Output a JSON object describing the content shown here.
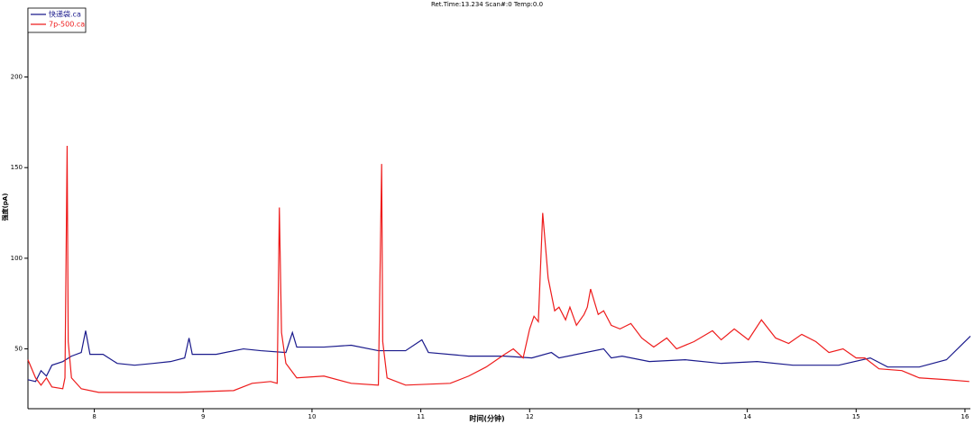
{
  "chart_data": {
    "type": "line",
    "title": "Ret.Time:13.234  Scan#:0 Temp:0.0",
    "x_label": "时间(分钟)",
    "y_label": "强度(pA)",
    "xlim": [
      7.39,
      16.05
    ],
    "ylim": [
      17,
      238
    ],
    "xticks": [
      8,
      9,
      10,
      11,
      12,
      13,
      14,
      15,
      16
    ],
    "yticks": [
      50,
      100,
      150,
      200
    ],
    "legend": "upper left",
    "series": [
      {
        "name": "快递袋.ca",
        "color": "#1a1a8c",
        "x": [
          7.39,
          7.46,
          7.51,
          7.56,
          7.61,
          7.71,
          7.79,
          7.88,
          7.92,
          7.96,
          8.08,
          8.21,
          8.37,
          8.54,
          8.7,
          8.83,
          8.87,
          8.9,
          9.12,
          9.37,
          9.53,
          9.76,
          9.82,
          9.86,
          10.11,
          10.36,
          10.61,
          10.86,
          11.01,
          11.07,
          11.44,
          11.77,
          12.02,
          12.2,
          12.27,
          12.68,
          12.75,
          12.85,
          13.1,
          13.43,
          13.76,
          14.09,
          14.42,
          14.84,
          15.13,
          15.29,
          15.58,
          15.83,
          16.05
        ],
        "values": [
          33,
          32,
          38,
          35,
          41,
          43,
          46,
          48,
          60,
          47,
          47,
          42,
          41,
          42,
          43,
          45,
          56,
          47,
          47,
          50,
          49,
          48,
          59,
          51,
          51,
          52,
          49,
          49,
          55,
          48,
          46,
          46,
          45,
          48,
          45,
          50,
          45,
          46,
          43,
          44,
          42,
          43,
          41,
          41,
          45,
          40,
          40,
          44,
          57
        ]
      },
      {
        "name": "7p-500.ca",
        "color": "#ee1c1c",
        "x": [
          7.39,
          7.46,
          7.51,
          7.56,
          7.61,
          7.71,
          7.73,
          7.75,
          7.76,
          7.79,
          7.88,
          8.04,
          8.79,
          9.28,
          9.45,
          9.62,
          9.68,
          9.7,
          9.72,
          9.76,
          9.86,
          10.11,
          10.36,
          10.61,
          10.64,
          10.65,
          10.69,
          10.86,
          11.27,
          11.44,
          11.6,
          11.77,
          11.85,
          11.94,
          12.0,
          12.04,
          12.08,
          12.12,
          12.17,
          12.23,
          12.27,
          12.33,
          12.37,
          12.43,
          12.5,
          12.53,
          12.56,
          12.63,
          12.68,
          12.75,
          12.83,
          12.93,
          13.03,
          13.14,
          13.26,
          13.35,
          13.51,
          13.68,
          13.76,
          13.88,
          14.01,
          14.13,
          14.26,
          14.38,
          14.5,
          14.63,
          14.75,
          14.88,
          15.0,
          15.08,
          15.21,
          15.42,
          15.58,
          15.83,
          16.04
        ],
        "values": [
          44,
          34,
          30,
          34,
          29,
          28,
          34,
          162,
          54,
          34,
          28,
          26,
          26,
          27,
          31,
          32,
          31,
          128,
          59,
          42,
          34,
          35,
          31,
          30,
          152,
          54,
          34,
          30,
          31,
          35,
          40,
          47,
          50,
          45,
          61,
          68,
          65,
          125,
          89,
          71,
          73,
          66,
          73,
          63,
          69,
          73,
          83,
          69,
          71,
          63,
          61,
          64,
          56,
          51,
          56,
          50,
          54,
          60,
          55,
          61,
          55,
          66,
          56,
          53,
          58,
          54,
          48,
          50,
          45,
          45,
          39,
          38,
          34,
          33,
          32
        ]
      }
    ]
  }
}
